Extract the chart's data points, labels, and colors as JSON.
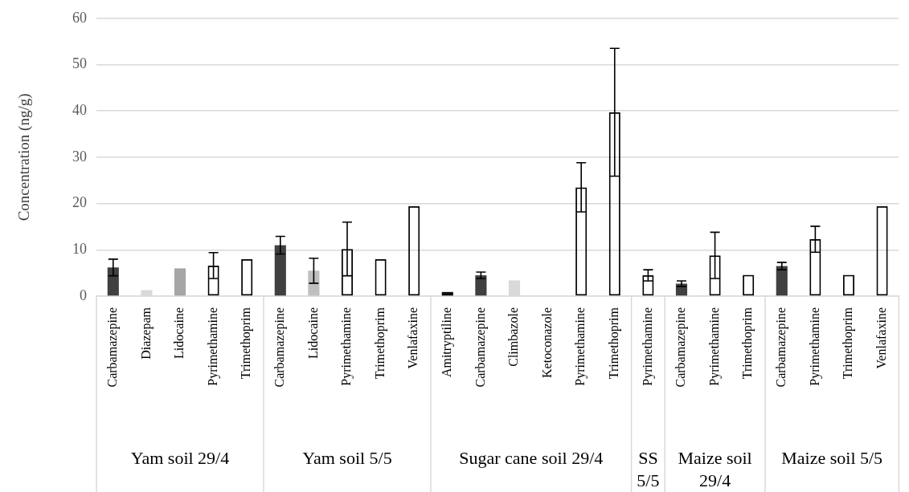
{
  "chart_data": {
    "type": "bar",
    "ylabel": "Concentration (ng/g)",
    "categories": [
      "Carbamazepine",
      "Diazepam",
      "Lidocaine",
      "Pyrimethamine",
      "Trimethoprim",
      "Carbamazepine",
      "Lidocaine",
      "Pyrimethamine",
      "Trimethoprim",
      "Venlafaxine",
      "Amitryptiline",
      "Carbamazepine",
      "Climbazole",
      "Ketoconazole",
      "Pyrimethamine",
      "Trimethoprim",
      "Pyrimethamine",
      "Carbamazepine",
      "Pyrimethamine",
      "Trimethoprim",
      "Carbamazepine",
      "Pyrimethamine",
      "Trimethoprim",
      "Venlafaxine"
    ],
    "series": [
      {
        "values": [
          6.2,
          1.3,
          6.0,
          6.6,
          8.0,
          null,
          null,
          null,
          null,
          null,
          null,
          null,
          null,
          null,
          null,
          null,
          null,
          null,
          null,
          null,
          null,
          null,
          null,
          null
        ],
        "errors": [
          1.8,
          null,
          null,
          2.8,
          null,
          null,
          null,
          null,
          null,
          null,
          null,
          null,
          null,
          null,
          null,
          null,
          null,
          null,
          null,
          null,
          null,
          null,
          null,
          null
        ],
        "colors": [
          "#404040",
          "#d9d9d9",
          "#a6a6a6",
          "#000000",
          "#000000",
          null,
          null,
          null,
          null,
          null,
          null,
          null,
          null,
          null,
          null,
          null,
          null,
          null,
          null,
          null,
          null,
          null,
          null,
          null
        ]
      },
      {
        "values": [
          null,
          null,
          null,
          null,
          null,
          11.0,
          5.5,
          10.2,
          8.0,
          19.4,
          null,
          null,
          null,
          null,
          null,
          null,
          null,
          null,
          null,
          null,
          null,
          null,
          null,
          null
        ],
        "errors": [
          null,
          null,
          null,
          null,
          null,
          1.9,
          2.7,
          5.8,
          null,
          null,
          null,
          null,
          null,
          null,
          null,
          null,
          null,
          null,
          null,
          null,
          null,
          null,
          null,
          null
        ],
        "colors": [
          null,
          null,
          null,
          null,
          null,
          "#404040",
          "#bfbfbf",
          "#000000",
          "#000000",
          "#000000",
          null,
          null,
          null,
          null,
          null,
          null,
          null,
          null,
          null,
          null,
          null,
          null,
          null,
          null
        ]
      },
      {
        "values": [
          null,
          null,
          null,
          null,
          null,
          null,
          null,
          null,
          null,
          null,
          0.9,
          4.5,
          3.4,
          null,
          23.5,
          39.7,
          null,
          null,
          null,
          null,
          null,
          null,
          null,
          null
        ],
        "errors": [
          null,
          null,
          null,
          null,
          null,
          null,
          null,
          null,
          null,
          null,
          null,
          0.7,
          null,
          null,
          5.3,
          13.8,
          null,
          null,
          null,
          null,
          null,
          null,
          null,
          null
        ],
        "colors": [
          null,
          null,
          null,
          null,
          null,
          null,
          null,
          null,
          null,
          null,
          "#0d0d0d",
          "#404040",
          "#d9d9d9",
          null,
          "#000000",
          "#000000",
          null,
          null,
          null,
          null,
          null,
          null,
          null,
          null
        ]
      },
      {
        "values": [
          null,
          null,
          null,
          null,
          null,
          null,
          null,
          null,
          null,
          null,
          null,
          null,
          null,
          null,
          null,
          null,
          4.5,
          null,
          null,
          null,
          null,
          null,
          null,
          null
        ],
        "errors": [
          null,
          null,
          null,
          null,
          null,
          null,
          null,
          null,
          null,
          null,
          null,
          null,
          null,
          null,
          null,
          null,
          1.2,
          null,
          null,
          null,
          null,
          null,
          null,
          null
        ],
        "colors": [
          null,
          null,
          null,
          null,
          null,
          null,
          null,
          null,
          null,
          null,
          null,
          null,
          null,
          null,
          null,
          null,
          "#000000",
          null,
          null,
          null,
          null,
          null,
          null,
          null
        ]
      },
      {
        "values": [
          null,
          null,
          null,
          null,
          null,
          null,
          null,
          null,
          null,
          null,
          null,
          null,
          null,
          null,
          null,
          null,
          null,
          2.7,
          8.8,
          4.6,
          null,
          null,
          null,
          null
        ],
        "errors": [
          null,
          null,
          null,
          null,
          null,
          null,
          null,
          null,
          null,
          null,
          null,
          null,
          null,
          null,
          null,
          null,
          null,
          0.6,
          5.0,
          null,
          null,
          null,
          null,
          null
        ],
        "colors": [
          null,
          null,
          null,
          null,
          null,
          null,
          null,
          null,
          null,
          null,
          null,
          null,
          null,
          null,
          null,
          null,
          null,
          "#404040",
          "#000000",
          "#000000",
          null,
          null,
          null,
          null
        ]
      },
      {
        "values": [
          null,
          null,
          null,
          null,
          null,
          null,
          null,
          null,
          null,
          null,
          null,
          null,
          null,
          null,
          null,
          null,
          null,
          null,
          null,
          null,
          6.5,
          12.3,
          4.6,
          19.4
        ],
        "errors": [
          null,
          null,
          null,
          null,
          null,
          null,
          null,
          null,
          null,
          null,
          null,
          null,
          null,
          null,
          null,
          null,
          null,
          null,
          null,
          null,
          0.8,
          2.8,
          null,
          null
        ],
        "colors": [
          null,
          null,
          null,
          null,
          null,
          null,
          null,
          null,
          null,
          null,
          null,
          null,
          null,
          null,
          null,
          null,
          null,
          null,
          null,
          null,
          "#404040",
          "#000000",
          "#000000",
          "#000000"
        ]
      }
    ],
    "annotations": [
      "Yam soil 29/4",
      "Yam soil 5/5",
      "Sugar cane soil 29/4",
      "SS 5/5",
      "Maize soil 29/4",
      "Maize soil 5/5"
    ],
    "ylim": [
      0,
      60
    ],
    "yticks": [
      0,
      10,
      20,
      30,
      40,
      50,
      60
    ],
    "grid": "y"
  }
}
